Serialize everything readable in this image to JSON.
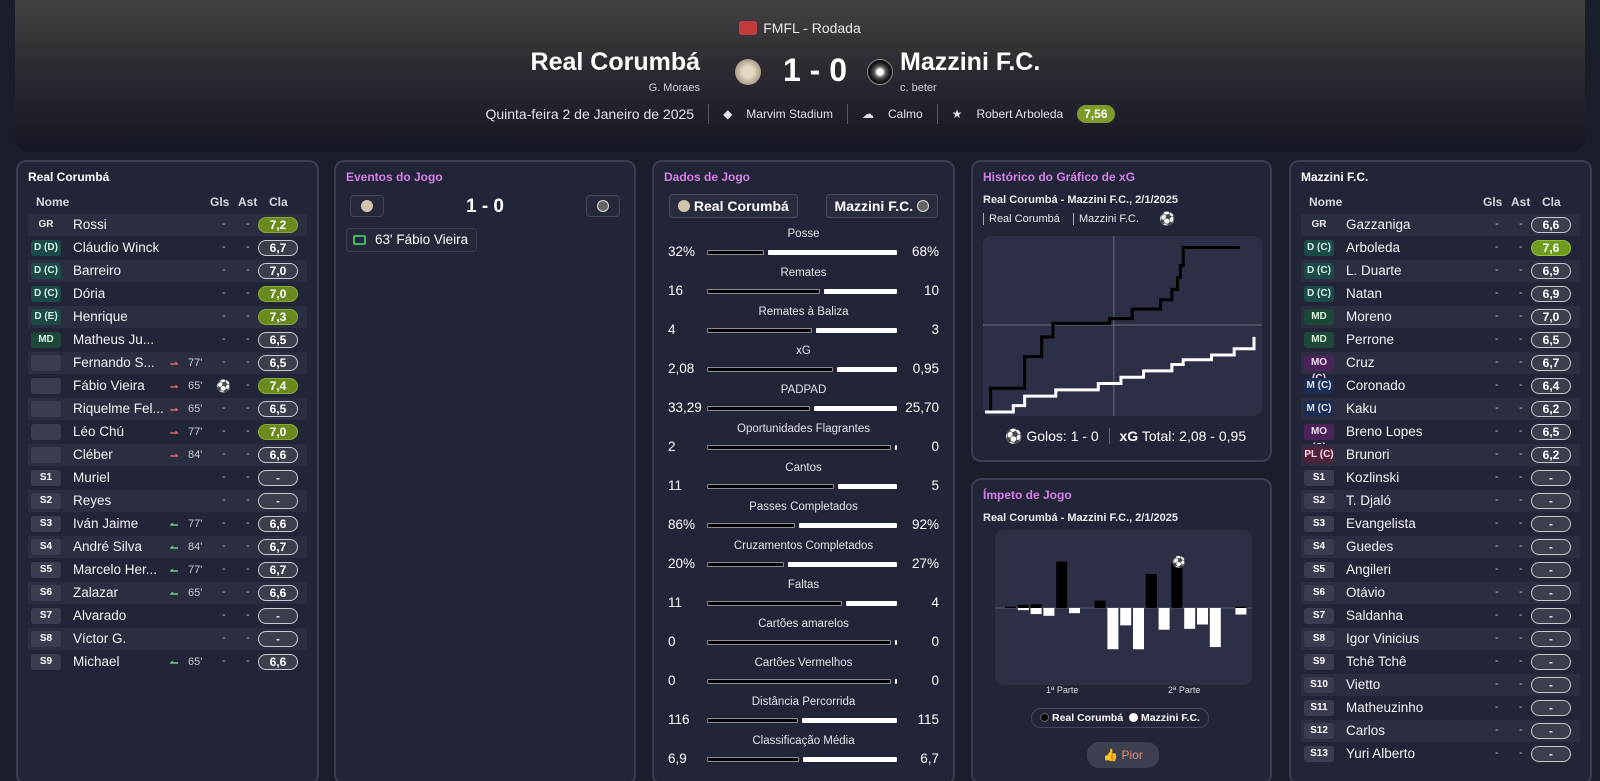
{
  "header": {
    "competition": "FMFL - Rodada",
    "home_team": "Real Corumbá",
    "home_manager": "G. Moraes",
    "away_team": "Mazzini F.C.",
    "away_manager": "c. beter",
    "score": "1 - 0",
    "date": "Quinta-feira 2 de Janeiro de 2025",
    "stadium": "Marvim Stadium",
    "weather": "Calmo",
    "player_of_match": "Robert Arboleda",
    "potm_rating": "7,56",
    "colors": {
      "potm": "#7d9a2a",
      "accent_title": "#d77fe8"
    }
  },
  "home_panel": {
    "title": "Real Corumbá",
    "cols": {
      "name": "Nome",
      "goals": "Gls",
      "assists": "Ast",
      "rating": "Cla"
    },
    "players": [
      {
        "pos": "GR",
        "name": "Rossi",
        "gls": "-",
        "ast": "-",
        "rating": "7,2",
        "style": "gk",
        "rclass": "good"
      },
      {
        "pos": "D (D)",
        "name": "Cláudio Winck",
        "gls": "-",
        "ast": "-",
        "rating": "6,7",
        "style": "def",
        "rclass": ""
      },
      {
        "pos": "D (C)",
        "name": "Barreiro",
        "gls": "-",
        "ast": "-",
        "rating": "7,0",
        "style": "def",
        "rclass": ""
      },
      {
        "pos": "D (C)",
        "name": "Dória",
        "gls": "-",
        "ast": "-",
        "rating": "7,0",
        "style": "def",
        "rclass": "good"
      },
      {
        "pos": "D (E)",
        "name": "Henrique",
        "gls": "-",
        "ast": "-",
        "rating": "7,3",
        "style": "def",
        "rclass": "good"
      },
      {
        "pos": "MD",
        "name": "Matheus Ju...",
        "gls": "-",
        "ast": "-",
        "rating": "6,5",
        "style": "mid",
        "rclass": ""
      },
      {
        "pos": "",
        "name": "Fernando S...",
        "sub": "out",
        "min": "77'",
        "gls": "-",
        "ast": "-",
        "rating": "6,5",
        "style": "blank",
        "rclass": ""
      },
      {
        "pos": "",
        "name": "Fábio Vieira",
        "sub": "out",
        "min": "65'",
        "gls": "",
        "goal": "⚽",
        "ast": "-",
        "rating": "7,4",
        "style": "blank",
        "rclass": "good"
      },
      {
        "pos": "",
        "name": "Riquelme Fel...",
        "sub": "out",
        "min": "65'",
        "gls": "-",
        "ast": "-",
        "rating": "6,5",
        "style": "blank",
        "rclass": ""
      },
      {
        "pos": "",
        "name": "Léo Chú",
        "sub": "out",
        "min": "77'",
        "gls": "-",
        "ast": "-",
        "rating": "7,0",
        "style": "blank",
        "rclass": "good"
      },
      {
        "pos": "",
        "name": "Cléber",
        "sub": "out",
        "min": "84'",
        "gls": "-",
        "ast": "-",
        "rating": "6,6",
        "style": "blank",
        "rclass": ""
      },
      {
        "pos": "S1",
        "name": "Muriel",
        "gls": "-",
        "ast": "-",
        "rating": "-",
        "style": "sub",
        "rclass": "none"
      },
      {
        "pos": "S2",
        "name": "Reyes",
        "gls": "-",
        "ast": "-",
        "rating": "-",
        "style": "sub",
        "rclass": "none"
      },
      {
        "pos": "S3",
        "name": "Iván Jaime",
        "sub": "in",
        "min": "77'",
        "gls": "-",
        "ast": "-",
        "rating": "6,6",
        "style": "sub",
        "rclass": ""
      },
      {
        "pos": "S4",
        "name": "André Silva",
        "sub": "in",
        "min": "84'",
        "gls": "-",
        "ast": "-",
        "rating": "6,7",
        "style": "sub",
        "rclass": ""
      },
      {
        "pos": "S5",
        "name": "Marcelo Her...",
        "sub": "in",
        "min": "77'",
        "gls": "-",
        "ast": "-",
        "rating": "6,7",
        "style": "sub",
        "rclass": ""
      },
      {
        "pos": "S6",
        "name": "Zalazar",
        "sub": "in",
        "min": "65'",
        "gls": "-",
        "ast": "-",
        "rating": "6,6",
        "style": "sub",
        "rclass": ""
      },
      {
        "pos": "S7",
        "name": "Alvarado",
        "gls": "-",
        "ast": "-",
        "rating": "-",
        "style": "sub",
        "rclass": "none"
      },
      {
        "pos": "S8",
        "name": "Víctor G.",
        "gls": "-",
        "ast": "-",
        "rating": "-",
        "style": "sub",
        "rclass": "none"
      },
      {
        "pos": "S9",
        "name": "Michael",
        "sub": "in",
        "min": "65'",
        "gls": "-",
        "ast": "-",
        "rating": "6,6",
        "style": "sub",
        "rclass": ""
      }
    ]
  },
  "away_panel": {
    "title": "Mazzini F.C.",
    "cols": {
      "name": "Nome",
      "goals": "Gls",
      "assists": "Ast",
      "rating": "Cla"
    },
    "players": [
      {
        "pos": "GR",
        "name": "Gazzaniga",
        "gls": "-",
        "ast": "-",
        "rating": "6,6",
        "style": "gk",
        "rclass": ""
      },
      {
        "pos": "D (C)",
        "name": "Arboleda",
        "gls": "-",
        "ast": "-",
        "rating": "7,6",
        "style": "def",
        "rclass": "best"
      },
      {
        "pos": "D (C)",
        "name": "L. Duarte",
        "gls": "-",
        "ast": "-",
        "rating": "6,9",
        "style": "def",
        "rclass": ""
      },
      {
        "pos": "D (C)",
        "name": "Natan",
        "gls": "-",
        "ast": "-",
        "rating": "6,9",
        "style": "def",
        "rclass": ""
      },
      {
        "pos": "MD",
        "name": "Moreno",
        "gls": "-",
        "ast": "-",
        "rating": "7,0",
        "style": "mid",
        "rclass": ""
      },
      {
        "pos": "MD",
        "name": "Perrone",
        "gls": "-",
        "ast": "-",
        "rating": "6,5",
        "style": "mid",
        "rclass": ""
      },
      {
        "pos": "MO (C)",
        "name": "Cruz",
        "gls": "-",
        "ast": "-",
        "rating": "6,7",
        "style": "amc",
        "rclass": ""
      },
      {
        "pos": "M (C)",
        "name": "Coronado",
        "gls": "-",
        "ast": "-",
        "rating": "6,4",
        "style": "wb",
        "rclass": ""
      },
      {
        "pos": "M (C)",
        "name": "Kaku",
        "gls": "-",
        "ast": "-",
        "rating": "6,2",
        "style": "wb",
        "rclass": ""
      },
      {
        "pos": "MO (C)",
        "name": "Breno Lopes",
        "gls": "-",
        "ast": "-",
        "rating": "6,5",
        "style": "amc",
        "rclass": ""
      },
      {
        "pos": "PL (C)",
        "name": "Brunori",
        "gls": "-",
        "ast": "-",
        "rating": "6,2",
        "style": "st",
        "rclass": ""
      },
      {
        "pos": "S1",
        "name": "Kozlinski",
        "gls": "-",
        "ast": "-",
        "rating": "-",
        "style": "sub",
        "rclass": "none"
      },
      {
        "pos": "S2",
        "name": "T. Djaló",
        "gls": "-",
        "ast": "-",
        "rating": "-",
        "style": "sub",
        "rclass": "none"
      },
      {
        "pos": "S3",
        "name": "Evangelista",
        "gls": "-",
        "ast": "-",
        "rating": "-",
        "style": "sub",
        "rclass": "none"
      },
      {
        "pos": "S4",
        "name": "Guedes",
        "gls": "-",
        "ast": "-",
        "rating": "-",
        "style": "sub",
        "rclass": "none"
      },
      {
        "pos": "S5",
        "name": "Angileri",
        "gls": "-",
        "ast": "-",
        "rating": "-",
        "style": "sub",
        "rclass": "none"
      },
      {
        "pos": "S6",
        "name": "Otávio",
        "gls": "-",
        "ast": "-",
        "rating": "-",
        "style": "sub",
        "rclass": "none"
      },
      {
        "pos": "S7",
        "name": "Saldanha",
        "gls": "-",
        "ast": "-",
        "rating": "-",
        "style": "sub",
        "rclass": "none"
      },
      {
        "pos": "S8",
        "name": "Igor Vinicius",
        "gls": "-",
        "ast": "-",
        "rating": "-",
        "style": "sub",
        "rclass": "none"
      },
      {
        "pos": "S9",
        "name": "Tchê Tchê",
        "gls": "-",
        "ast": "-",
        "rating": "-",
        "style": "sub",
        "rclass": "none"
      },
      {
        "pos": "S10",
        "name": "Vietto",
        "gls": "-",
        "ast": "-",
        "rating": "-",
        "style": "sub",
        "rclass": "none"
      },
      {
        "pos": "S11",
        "name": "Matheuzinho",
        "gls": "-",
        "ast": "-",
        "rating": "-",
        "style": "sub",
        "rclass": "none"
      },
      {
        "pos": "S12",
        "name": "Carlos",
        "gls": "-",
        "ast": "-",
        "rating": "-",
        "style": "sub",
        "rclass": "none"
      },
      {
        "pos": "S13",
        "name": "Yuri Alberto",
        "gls": "-",
        "ast": "-",
        "rating": "-",
        "style": "sub",
        "rclass": "none"
      }
    ]
  },
  "events": {
    "title": "Eventos do Jogo",
    "score": "1 - 0",
    "items": [
      {
        "text": "63' Fábio Vieira",
        "icon": "goal-icon"
      }
    ]
  },
  "stats": {
    "title": "Dados de Jogo",
    "home_label": "Real Corumbá",
    "away_label": "Mazzini F.C.",
    "rows": [
      {
        "label": "Posse",
        "home": "32%",
        "away": "68%",
        "h": 32,
        "a": 68
      },
      {
        "label": "Remates",
        "home": "16",
        "away": "10",
        "h": 16,
        "a": 10
      },
      {
        "label": "Remates à Baliza",
        "home": "4",
        "away": "3",
        "h": 4,
        "a": 3
      },
      {
        "label": "xG",
        "home": "2,08",
        "away": "0,95",
        "h": 2.08,
        "a": 0.95
      },
      {
        "label": "PADPAD",
        "home": "33,29",
        "away": "25,70",
        "h": 33.29,
        "a": 25.7
      },
      {
        "label": "Oportunidades Flagrantes",
        "home": "2",
        "away": "0",
        "h": 2,
        "a": 0
      },
      {
        "label": "Cantos",
        "home": "11",
        "away": "5",
        "h": 11,
        "a": 5
      },
      {
        "label": "Passes Completados",
        "home": "86%",
        "away": "92%",
        "h": 86,
        "a": 92
      },
      {
        "label": "Cruzamentos Completados",
        "home": "20%",
        "away": "27%",
        "h": 20,
        "a": 27
      },
      {
        "label": "Faltas",
        "home": "11",
        "away": "4",
        "h": 11,
        "a": 4
      },
      {
        "label": "Cartões amarelos",
        "home": "0",
        "away": "0",
        "h": 0,
        "a": 0
      },
      {
        "label": "Cartões Vermelhos",
        "home": "0",
        "away": "0",
        "h": 0,
        "a": 0
      },
      {
        "label": "Distância Percorrida",
        "home": "116",
        "away": "115",
        "h": 116,
        "a": 115
      },
      {
        "label": "Classificação Média",
        "home": "6,9",
        "away": "6,7",
        "h": 6.9,
        "a": 6.7
      }
    ]
  },
  "xg_panel": {
    "title": "Histórico do Gráfico de xG",
    "subtitle": "Real Corumbá - Mazzini F.C., 2/1/2025",
    "tab_home": "Real Corumbá",
    "tab_away": "Mazzini F.C.",
    "goals_label": "Golos:",
    "goals_value": "1 - 0",
    "xg_label": "xG",
    "total_label": "Total:",
    "total_value": "2,08  -  0,95"
  },
  "momentum_panel": {
    "title": "Ímpeto de Jogo",
    "subtitle": "Real Corumbá - Mazzini F.C., 2/1/2025",
    "half1": "1ª Parte",
    "half2": "2ª Parte",
    "legend_home": "Real Corumbá",
    "legend_away": "Mazzini F.C.",
    "button": "Pior"
  },
  "chart_data": [
    {
      "type": "line",
      "title": "Histórico do Gráfico de xG",
      "xlim": [
        0,
        95
      ],
      "ylim": [
        0,
        2.2
      ],
      "series": [
        {
          "name": "Real Corumbá",
          "color": "#000000",
          "x": [
            0,
            2,
            2,
            14,
            14,
            20,
            20,
            24,
            24,
            44,
            44,
            52,
            52,
            62,
            62,
            66,
            66,
            68,
            68,
            69,
            69,
            70,
            70,
            90
          ],
          "y": [
            0,
            0,
            0.3,
            0.3,
            0.7,
            0.7,
            0.95,
            0.95,
            1.12,
            1.12,
            1.18,
            1.18,
            1.3,
            1.3,
            1.42,
            1.42,
            1.55,
            1.55,
            1.7,
            1.7,
            1.85,
            1.85,
            2.08,
            2.08
          ]
        },
        {
          "name": "Mazzini F.C.",
          "color": "#ffffff",
          "x": [
            0,
            10,
            10,
            14,
            14,
            25,
            25,
            40,
            40,
            48,
            48,
            56,
            56,
            66,
            66,
            70,
            70,
            80,
            80,
            88,
            88,
            95,
            95
          ],
          "y": [
            0,
            0,
            0.08,
            0.08,
            0.2,
            0.2,
            0.28,
            0.28,
            0.36,
            0.36,
            0.44,
            0.44,
            0.52,
            0.52,
            0.6,
            0.6,
            0.66,
            0.66,
            0.72,
            0.72,
            0.8,
            0.8,
            0.95
          ]
        }
      ]
    },
    {
      "type": "bar",
      "title": "Ímpeto de Jogo",
      "ylim": [
        -1,
        1
      ],
      "series": [
        {
          "name": "Real Corumbá",
          "color": "#000000",
          "x": [
            1,
            2,
            3,
            4,
            5,
            6,
            7,
            8,
            9,
            10,
            11,
            12,
            13,
            14,
            15,
            16,
            17,
            18,
            19
          ],
          "values": [
            0.02,
            0.05,
            0.06,
            0.0,
            0.75,
            0.0,
            0.0,
            0.12,
            0.0,
            0.0,
            0.0,
            0.55,
            0.0,
            0.72,
            0.0,
            0.0,
            0.0,
            0.0,
            0.02
          ]
        },
        {
          "name": "Mazzini F.C.",
          "color": "#ffffff",
          "x": [
            1,
            2,
            3,
            4,
            5,
            6,
            7,
            8,
            9,
            10,
            11,
            12,
            13,
            14,
            15,
            16,
            17,
            18,
            19
          ],
          "values": [
            0.0,
            0.05,
            0.14,
            0.18,
            0.0,
            0.12,
            0.0,
            0.0,
            0.95,
            0.4,
            0.95,
            0.0,
            0.5,
            0.0,
            0.48,
            0.38,
            0.9,
            0.0,
            0.15
          ]
        }
      ]
    }
  ]
}
